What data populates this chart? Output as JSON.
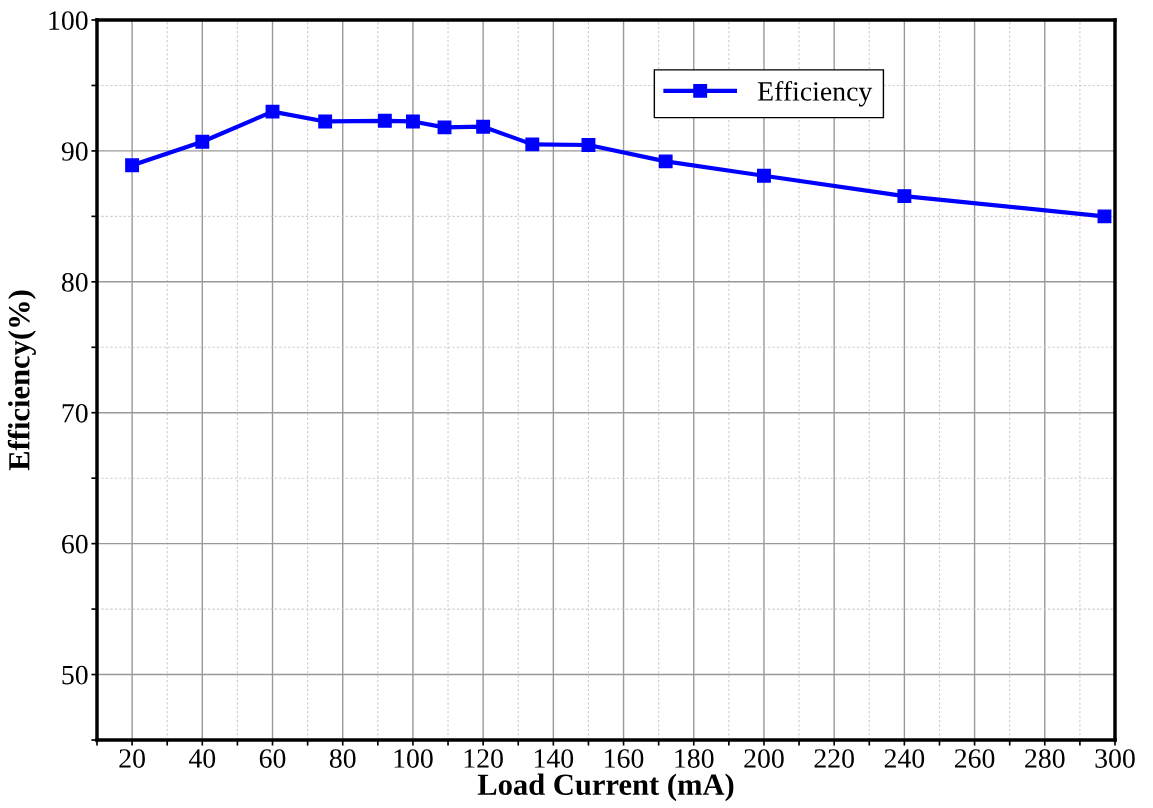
{
  "chart_data": {
    "type": "line",
    "xlabel": "Load Current (mA)",
    "ylabel": "Efficiency(%)",
    "x": [
      20,
      40,
      60,
      75,
      92,
      100,
      109,
      120,
      134,
      150,
      172,
      200,
      240,
      297
    ],
    "series": [
      {
        "name": "Efficiency",
        "color": "#0000ff",
        "values": [
          88.9,
          90.7,
          93.0,
          92.25,
          92.3,
          92.25,
          91.8,
          91.85,
          90.5,
          90.45,
          89.2,
          88.1,
          86.55,
          85.0
        ]
      }
    ],
    "xlim": [
      10,
      300
    ],
    "ylim": [
      45,
      100
    ],
    "xticks": [
      {
        "value": 10,
        "label": null
      },
      20,
      {
        "value": 30,
        "label": null
      },
      40,
      {
        "value": 50,
        "label": null
      },
      60,
      {
        "value": 70,
        "label": null
      },
      80,
      {
        "value": 90,
        "label": null
      },
      100,
      {
        "value": 110,
        "label": null
      },
      120,
      {
        "value": 130,
        "label": null
      },
      140,
      {
        "value": 150,
        "label": null
      },
      160,
      {
        "value": 170,
        "label": null
      },
      180,
      {
        "value": 190,
        "label": null
      },
      200,
      {
        "value": 210,
        "label": null
      },
      220,
      {
        "value": 230,
        "label": null
      },
      240,
      {
        "value": 250,
        "label": null
      },
      260,
      {
        "value": 270,
        "label": null
      },
      280,
      {
        "value": 290,
        "label": null
      },
      300
    ],
    "yticks": [
      {
        "value": 45,
        "label": null
      },
      50,
      {
        "value": 55,
        "label": null
      },
      60,
      {
        "value": 65,
        "label": null
      },
      70,
      {
        "value": 75,
        "label": null
      },
      80,
      {
        "value": 85,
        "label": null
      },
      90,
      {
        "value": 95,
        "label": null
      },
      100
    ],
    "grid": true,
    "legend": "top",
    "marker": "square",
    "line_style": "solid"
  }
}
